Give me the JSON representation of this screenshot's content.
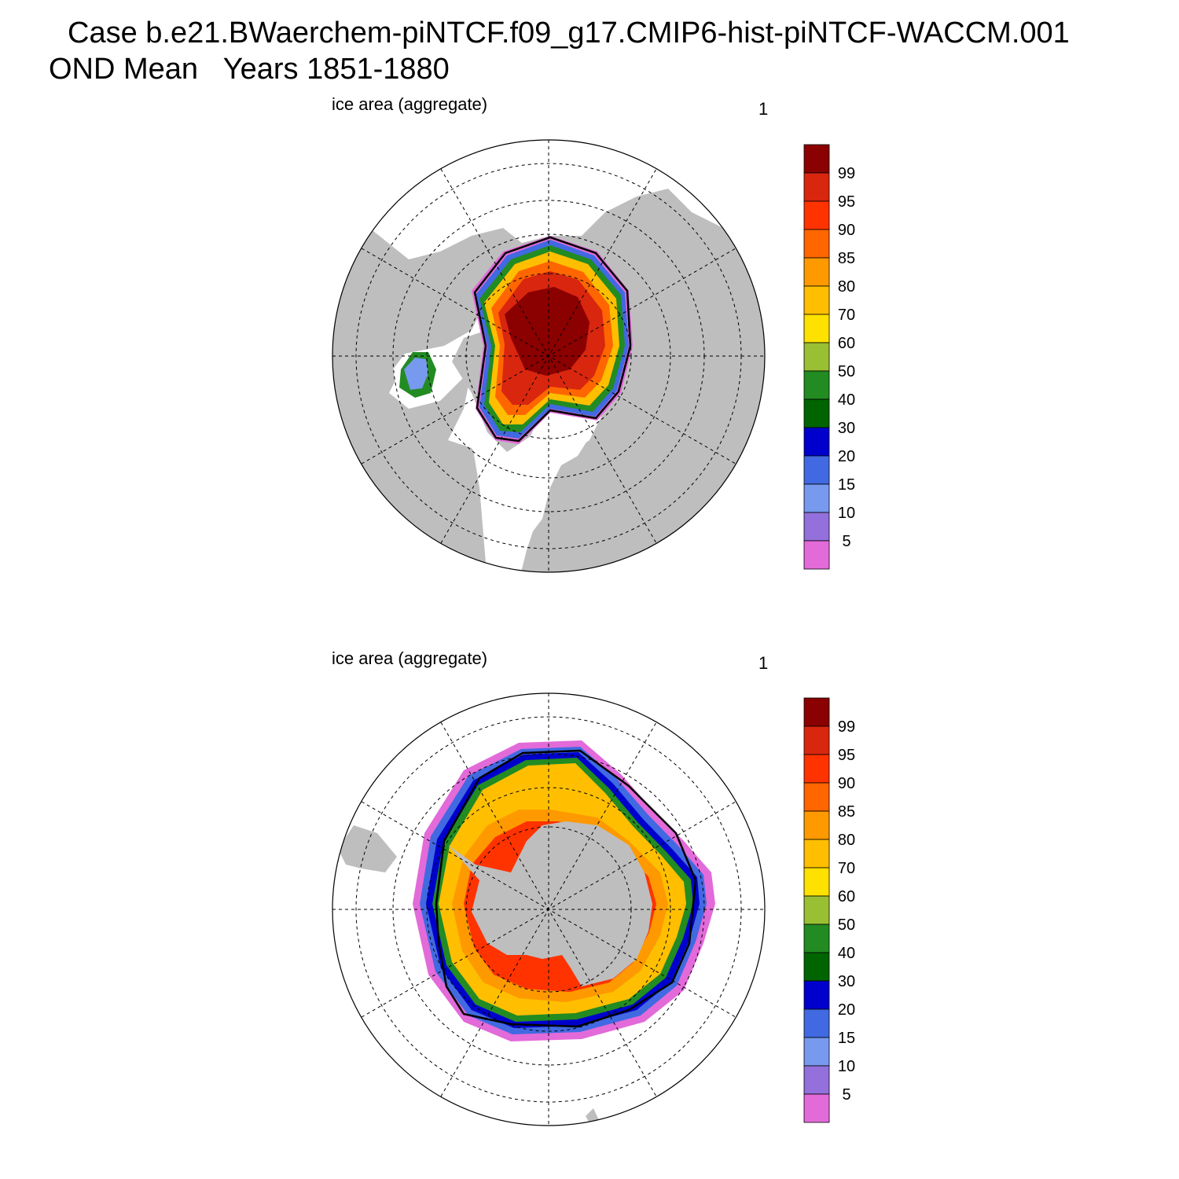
{
  "title": {
    "line1": "Case b.e21.BWaerchem-piNTCF.f09_g17.CMIP6-hist-piNTCF-WACCM.001",
    "line2_season": "OND Mean",
    "line2_years": "Years 1851-1880"
  },
  "panels": [
    {
      "id": "north",
      "label_left": "ice area  (aggregate)",
      "label_right": "1"
    },
    {
      "id": "south",
      "label_left": "ice area  (aggregate)",
      "label_right": "1"
    }
  ],
  "colorbar": {
    "labels": [
      "99",
      "95",
      "90",
      "85",
      "80",
      "70",
      "60",
      "50",
      "40",
      "30",
      "20",
      "15",
      "10",
      "5"
    ],
    "colors_top_to_bottom": [
      "#8b0000",
      "#d9260f",
      "#ff3300",
      "#ff6600",
      "#ff9900",
      "#ffbf00",
      "#ffe100",
      "#99bf33",
      "#228b22",
      "#006400",
      "#0000cd",
      "#4169e1",
      "#7799ee",
      "#9370db",
      "#e36ad9"
    ]
  },
  "map_colors": {
    "land": "#bebebe",
    "ocean": "#ffffff",
    "contour": "#000000",
    "grid": "#000000"
  }
}
